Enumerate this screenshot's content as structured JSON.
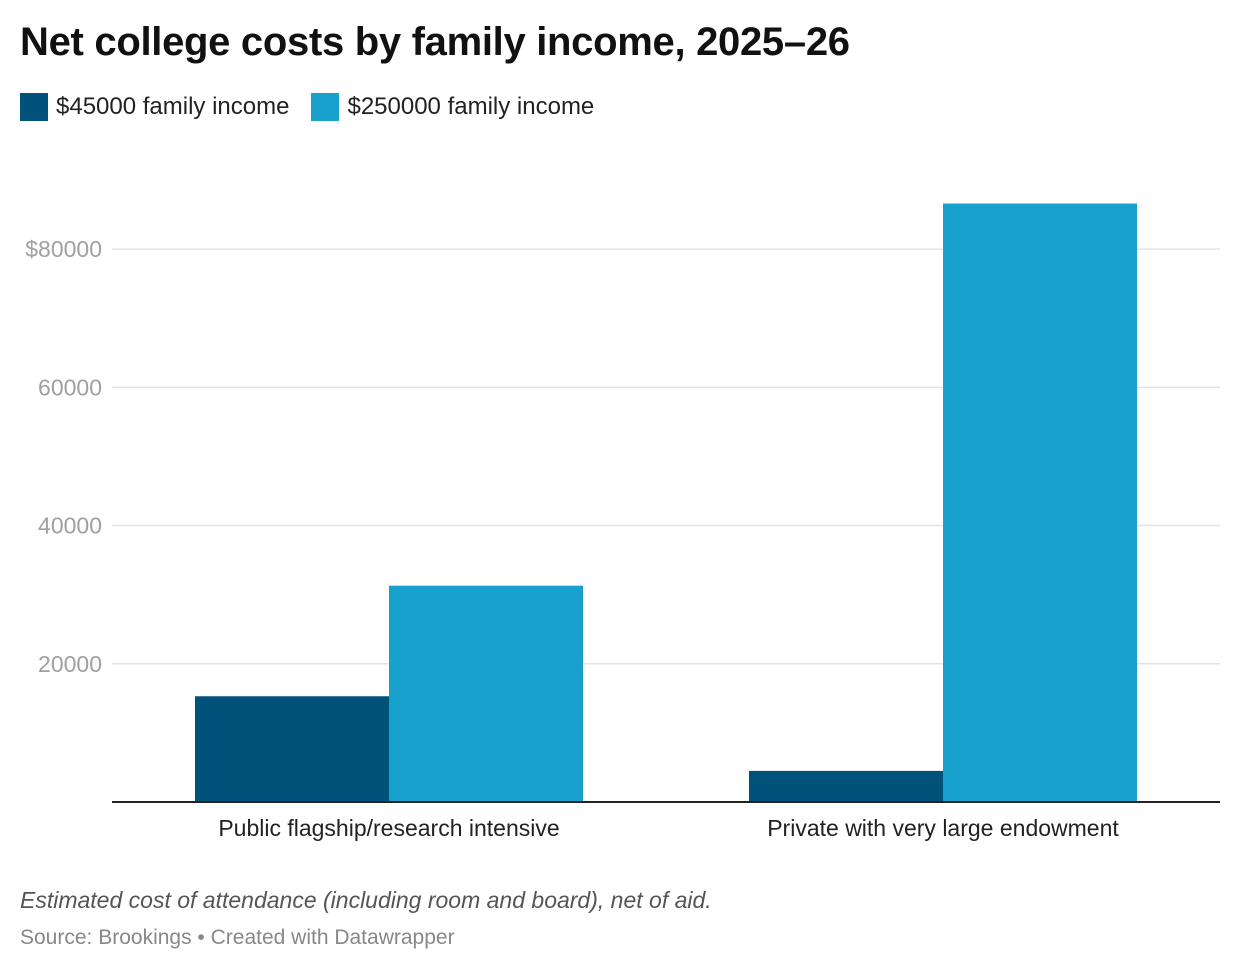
{
  "header": {
    "title": "Net college costs by family income, 2025–26"
  },
  "chart_data": {
    "type": "bar",
    "title": "Net college costs by family income, 2025–26",
    "xlabel": "",
    "ylabel": "",
    "categories": [
      "Public flagship/research intensive",
      "Private with very large endowment"
    ],
    "series": [
      {
        "name": "$45000 family income",
        "color": "#00527a",
        "values": [
          15300,
          4500
        ]
      },
      {
        "name": "$250000 family income",
        "color": "#18a1cd",
        "values": [
          31300,
          86600
        ]
      }
    ],
    "ylim": [
      0,
      90000
    ],
    "yticks": [
      20000,
      40000,
      60000,
      80000
    ],
    "ytick_labels": [
      "20000",
      "40000",
      "60000",
      "$80000"
    ],
    "grid": true,
    "legend_position": "top-left"
  },
  "footer": {
    "notes": "Estimated cost of attendance (including room and board), net of aid.",
    "source": "Source: Brookings • Created with Datawrapper"
  }
}
